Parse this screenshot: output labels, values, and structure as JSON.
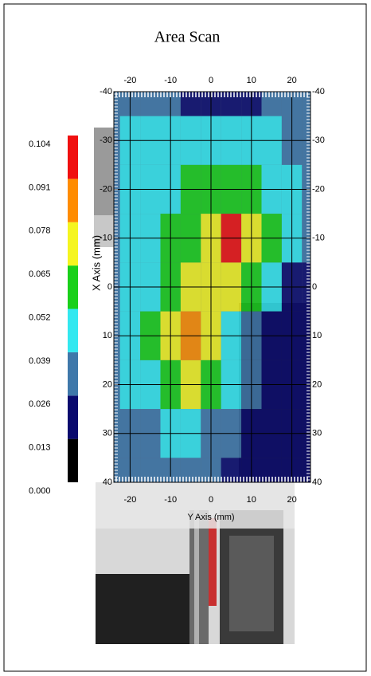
{
  "chart_data": {
    "type": "contour",
    "title": "Area Scan",
    "x_label": "Y Axis (mm)",
    "y_label": "X Axis (mm)",
    "x": [
      -25,
      -20,
      -15,
      -10,
      -5,
      0,
      5,
      10,
      15,
      20,
      25
    ],
    "y": [
      -40,
      -30,
      -20,
      -10,
      0,
      10,
      20,
      30,
      40
    ],
    "values": [
      [
        0.03,
        0.03,
        0.03,
        0.03,
        0.025,
        0.02,
        0.02,
        0.025,
        0.03,
        0.03,
        0.03
      ],
      [
        0.035,
        0.04,
        0.04,
        0.045,
        0.045,
        0.045,
        0.045,
        0.04,
        0.04,
        0.035,
        0.03
      ],
      [
        0.035,
        0.04,
        0.045,
        0.05,
        0.055,
        0.06,
        0.06,
        0.055,
        0.05,
        0.045,
        0.035
      ],
      [
        0.03,
        0.04,
        0.045,
        0.055,
        0.06,
        0.07,
        0.1,
        0.075,
        0.06,
        0.045,
        0.03
      ],
      [
        0.03,
        0.04,
        0.05,
        0.06,
        0.07,
        0.065,
        0.065,
        0.055,
        0.04,
        0.02,
        0.02
      ],
      [
        0.03,
        0.04,
        0.055,
        0.065,
        0.08,
        0.07,
        0.05,
        0.03,
        0.02,
        0.02,
        0.02
      ],
      [
        0.03,
        0.04,
        0.05,
        0.06,
        0.065,
        0.06,
        0.045,
        0.03,
        0.02,
        0.02,
        0.02
      ],
      [
        0.03,
        0.035,
        0.035,
        0.04,
        0.04,
        0.035,
        0.03,
        0.025,
        0.02,
        0.02,
        0.02
      ],
      [
        0.03,
        0.03,
        0.03,
        0.03,
        0.03,
        0.03,
        0.025,
        0.02,
        0.02,
        0.02,
        0.02
      ]
    ],
    "xlim": [
      -25,
      25
    ],
    "xticks": [
      -20,
      -10,
      0,
      10,
      20
    ],
    "ylim": [
      40,
      -40
    ],
    "yticks": [
      -40,
      -30,
      -20,
      -10,
      0,
      10,
      20,
      30,
      40
    ],
    "levels": [
      {
        "value": 0,
        "label": "0.000"
      },
      0.013,
      0.026,
      0.039,
      0.052,
      0.065,
      0.078,
      0.091,
      0.104
    ],
    "colors": [
      "#000000",
      "#0a0a6e",
      "#3f78aa",
      "#33e8f0",
      "#1ad01a",
      "#f5f520",
      "#ff8c00",
      "#f01010"
    ],
    "grid": true
  }
}
